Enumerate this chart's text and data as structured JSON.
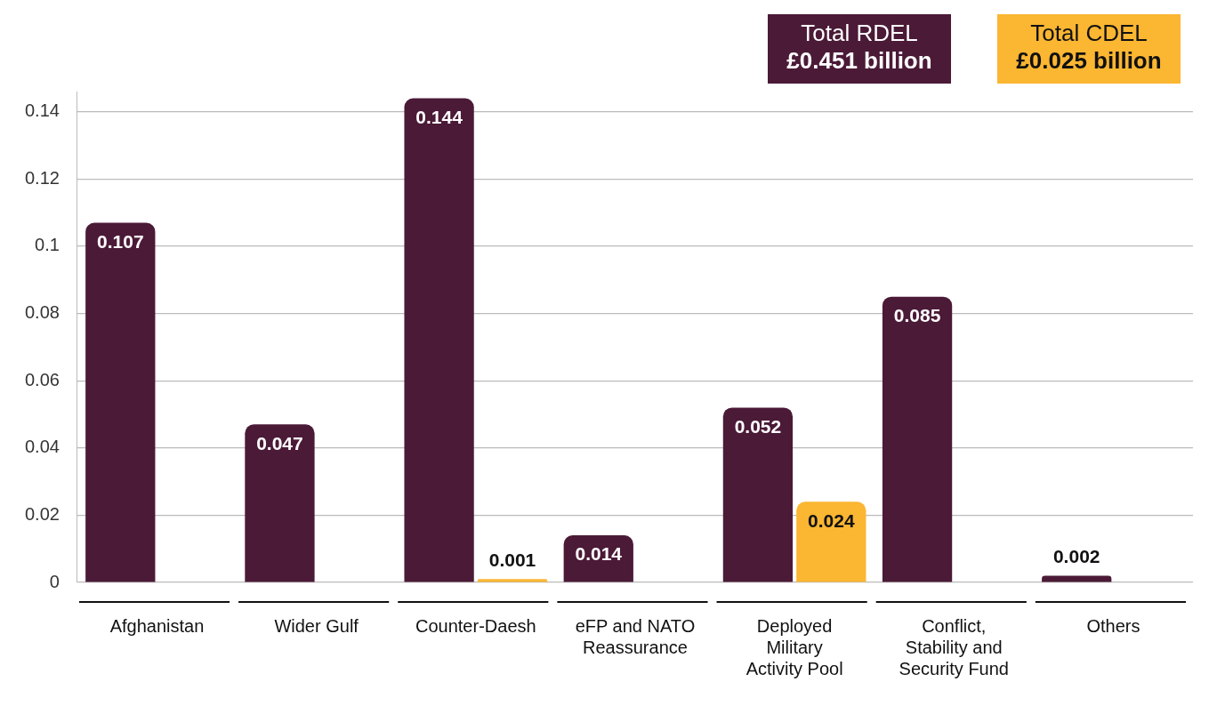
{
  "chart_data": {
    "type": "bar",
    "categories": [
      "Afghanistan",
      "Wider Gulf",
      "Counter-Daesh",
      "eFP and NATO Reassurance",
      "Deployed Military Activity Pool",
      "Conflict, Stability and Security Fund",
      "Others"
    ],
    "series": [
      {
        "name": "Total RDEL",
        "color": "#4b1a37",
        "values": [
          0.107,
          0.047,
          0.144,
          0.014,
          0.052,
          0.085,
          0.002
        ]
      },
      {
        "name": "Total CDEL",
        "color": "#fbb632",
        "values": [
          null,
          null,
          0.001,
          null,
          0.024,
          null,
          null
        ]
      }
    ],
    "annotations": [
      "£0.451 billion",
      "£0.025 billion"
    ],
    "ylim": [
      0,
      0.146
    ],
    "yticks": [
      0,
      0.02,
      0.04,
      0.06,
      0.08,
      0.1,
      0.12,
      0.14
    ],
    "grid": "y",
    "legend": "top right",
    "data_labels": true
  }
}
